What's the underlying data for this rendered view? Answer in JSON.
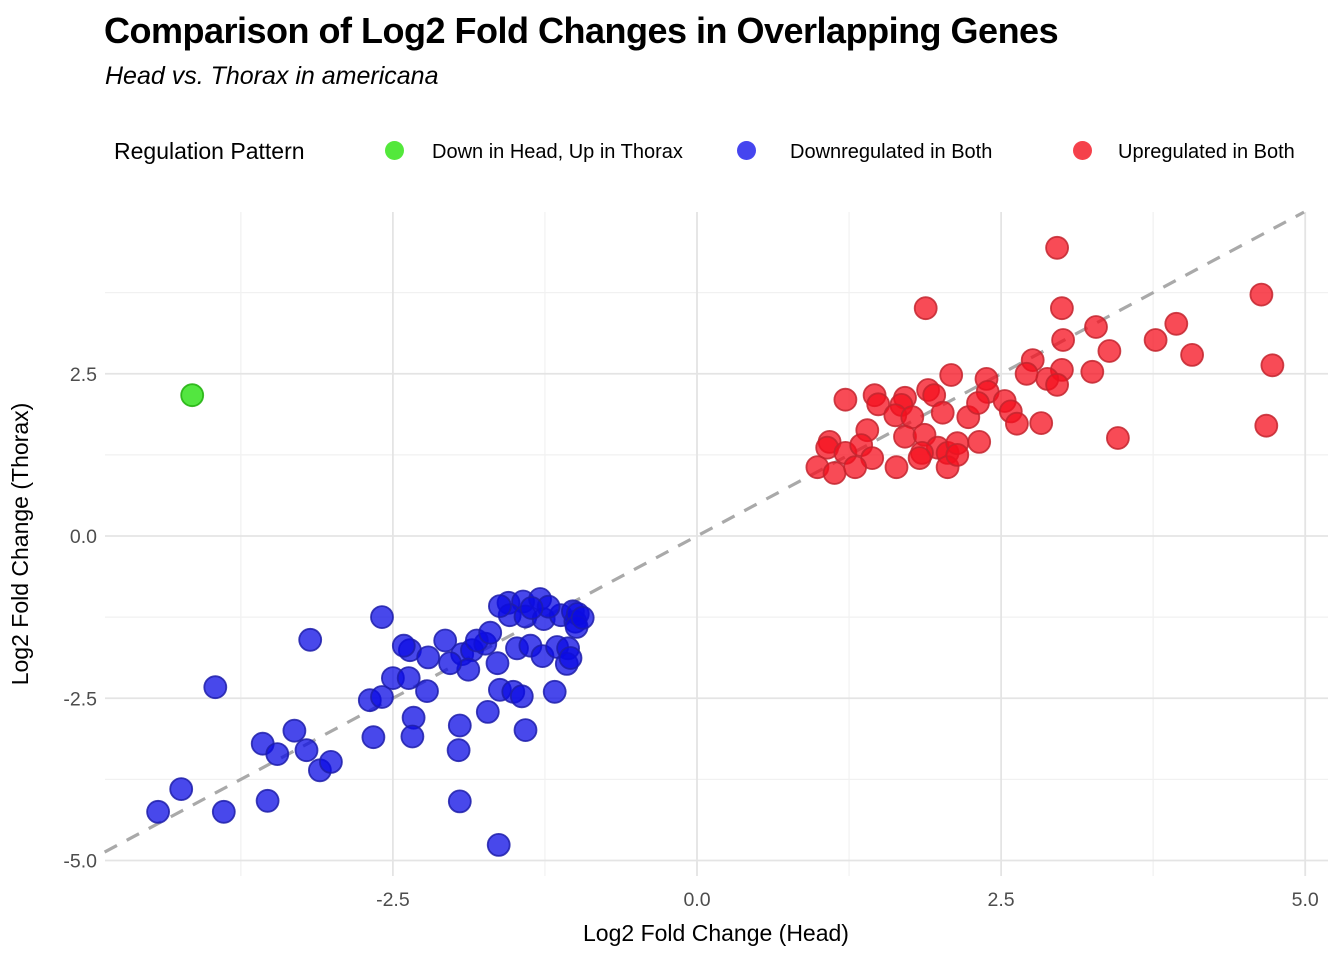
{
  "header": {
    "title": "Comparison of Log2 Fold Changes in Overlapping Genes",
    "subtitle": "Head vs. Thorax in americana"
  },
  "legend": {
    "title": "Regulation Pattern"
  },
  "chart_data": {
    "type": "scatter",
    "title": "Comparison of Log2 Fold Changes in Overlapping Genes",
    "subtitle": "Head vs. Thorax in americana",
    "xlabel": "Log2 Fold Change (Head)",
    "ylabel": "Log2 Fold Change (Thorax)",
    "xlim": [
      -4.87,
      5.19
    ],
    "ylim": [
      -5.24,
      4.99
    ],
    "xticks": [
      -2.5,
      0,
      2.5,
      5
    ],
    "xtick_labels": [
      "-2.5",
      "0.0",
      "2.5",
      "5.0"
    ],
    "yticks": [
      2.5,
      0,
      -2.5,
      -5
    ],
    "ytick_labels": [
      "2.5",
      "0.0",
      "-2.5",
      "-5.0"
    ],
    "minor_xticks": [
      -3.75,
      -1.25,
      1.25,
      3.75
    ],
    "minor_yticks": [
      3.75,
      1.25,
      -1.25,
      -3.75
    ],
    "grid": true,
    "legend_position": "top",
    "reference_line": {
      "style": "dashed",
      "equation": "y = x",
      "color": "#a9a9a9"
    },
    "colors": {
      "grid_major": "#e4e4e4",
      "grid_minor": "#f1f1f1",
      "tick_label": "#4d4d4d"
    },
    "series": [
      {
        "name": "Down in Head, Up in Thorax",
        "color": "#53e83b",
        "fill": "#19dd00",
        "stroke": "#1faf0a",
        "points": [
          [
            -4.15,
            2.17
          ]
        ]
      },
      {
        "name": "Downregulated in Both",
        "color": "#4545ef",
        "fill": "#0b0be4",
        "stroke": "#1d1daa",
        "points": [
          [
            -2.59,
            -1.25
          ],
          [
            -3.18,
            -1.6
          ],
          [
            -3.96,
            -2.33
          ],
          [
            -2.5,
            -2.19
          ],
          [
            -2.69,
            -2.53
          ],
          [
            -2.59,
            -2.48
          ],
          [
            -3.31,
            -3.0
          ],
          [
            -3.57,
            -3.2
          ],
          [
            -3.45,
            -3.36
          ],
          [
            -3.21,
            -3.3
          ],
          [
            -3.1,
            -3.61
          ],
          [
            -3.01,
            -3.48
          ],
          [
            -2.66,
            -3.1
          ],
          [
            -4.24,
            -3.9
          ],
          [
            -4.43,
            -4.25
          ],
          [
            -3.89,
            -4.25
          ],
          [
            -3.53,
            -4.08
          ],
          [
            -1.55,
            -1.03
          ],
          [
            -1.43,
            -1.01
          ],
          [
            -1.29,
            -0.97
          ],
          [
            -1.54,
            -1.22
          ],
          [
            -1.41,
            -1.24
          ],
          [
            -1.26,
            -1.28
          ],
          [
            -1.12,
            -1.22
          ],
          [
            -1.02,
            -1.16
          ],
          [
            -1.0,
            -1.32
          ],
          [
            -1.62,
            -1.08
          ],
          [
            -1.22,
            -1.09
          ],
          [
            -1.36,
            -1.11
          ],
          [
            -2.07,
            -1.61
          ],
          [
            -2.36,
            -1.76
          ],
          [
            -2.21,
            -1.87
          ],
          [
            -2.41,
            -1.69
          ],
          [
            -1.93,
            -1.82
          ],
          [
            -1.85,
            -1.76
          ],
          [
            -1.74,
            -1.66
          ],
          [
            -1.81,
            -1.61
          ],
          [
            -1.7,
            -1.49
          ],
          [
            -1.48,
            -1.73
          ],
          [
            -1.37,
            -1.69
          ],
          [
            -1.27,
            -1.85
          ],
          [
            -1.15,
            -1.71
          ],
          [
            -1.06,
            -1.73
          ],
          [
            -1.64,
            -1.96
          ],
          [
            -1.88,
            -2.06
          ],
          [
            -2.03,
            -1.96
          ],
          [
            -1.07,
            -1.97
          ],
          [
            -2.37,
            -2.19
          ],
          [
            -2.22,
            -2.39
          ],
          [
            -1.62,
            -2.37
          ],
          [
            -1.51,
            -2.4
          ],
          [
            -1.44,
            -2.47
          ],
          [
            -1.17,
            -2.4
          ],
          [
            -1.72,
            -2.71
          ],
          [
            -2.33,
            -2.8
          ],
          [
            -1.95,
            -2.92
          ],
          [
            -2.34,
            -3.09
          ],
          [
            -1.96,
            -3.3
          ],
          [
            -1.41,
            -2.99
          ],
          [
            -1.95,
            -4.09
          ],
          [
            -1.63,
            -4.76
          ],
          [
            -0.98,
            -1.2
          ],
          [
            -0.99,
            -1.4
          ],
          [
            -1.04,
            -1.88
          ],
          [
            -0.94,
            -1.26
          ]
        ]
      },
      {
        "name": "Upregulated in Both",
        "color": "#f5414b",
        "fill": "#f50f1e",
        "stroke": "#c3242e",
        "points": [
          [
            1.22,
            2.1
          ],
          [
            1.46,
            2.17
          ],
          [
            1.49,
            2.03
          ],
          [
            1.71,
            2.13
          ],
          [
            1.9,
            2.25
          ],
          [
            1.95,
            2.17
          ],
          [
            2.09,
            2.48
          ],
          [
            2.38,
            2.42
          ],
          [
            2.39,
            2.22
          ],
          [
            1.68,
            2.02
          ],
          [
            1.63,
            1.86
          ],
          [
            1.77,
            1.83
          ],
          [
            2.02,
            1.9
          ],
          [
            2.23,
            1.83
          ],
          [
            2.31,
            2.05
          ],
          [
            2.53,
            2.08
          ],
          [
            2.58,
            1.92
          ],
          [
            2.63,
            1.73
          ],
          [
            2.83,
            1.74
          ],
          [
            1.4,
            1.63
          ],
          [
            1.09,
            1.45
          ],
          [
            1.07,
            1.36
          ],
          [
            1.22,
            1.28
          ],
          [
            1.35,
            1.4
          ],
          [
            1.44,
            1.2
          ],
          [
            0.99,
            1.06
          ],
          [
            1.13,
            0.97
          ],
          [
            1.3,
            1.06
          ],
          [
            1.71,
            1.53
          ],
          [
            1.87,
            1.56
          ],
          [
            1.98,
            1.36
          ],
          [
            1.85,
            1.28
          ],
          [
            1.83,
            1.2
          ],
          [
            2.06,
            1.28
          ],
          [
            2.14,
            1.43
          ],
          [
            2.32,
            1.45
          ],
          [
            1.64,
            1.06
          ],
          [
            2.06,
            1.06
          ],
          [
            2.14,
            1.25
          ],
          [
            1.88,
            3.51
          ],
          [
            3.0,
            3.51
          ],
          [
            3.28,
            3.22
          ],
          [
            3.01,
            3.02
          ],
          [
            3.39,
            2.85
          ],
          [
            2.76,
            2.71
          ],
          [
            3.0,
            2.56
          ],
          [
            3.25,
            2.53
          ],
          [
            2.96,
            4.44
          ],
          [
            4.64,
            3.72
          ],
          [
            3.94,
            3.27
          ],
          [
            3.77,
            3.02
          ],
          [
            4.07,
            2.79
          ],
          [
            4.73,
            2.63
          ],
          [
            2.88,
            2.42
          ],
          [
            2.96,
            2.33
          ],
          [
            2.71,
            2.5
          ],
          [
            3.46,
            1.51
          ],
          [
            4.68,
            1.7
          ]
        ]
      }
    ]
  }
}
